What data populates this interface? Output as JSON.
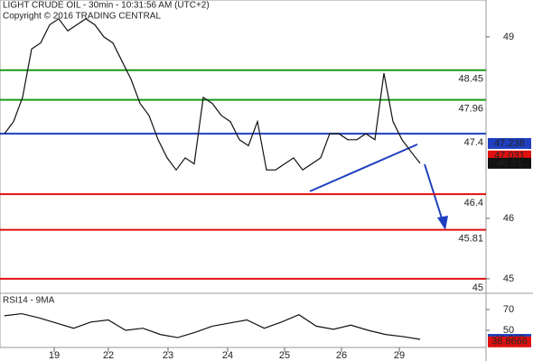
{
  "chart_data": [
    {
      "type": "line",
      "title": "LIGHT CRUDE OIL - 30min - 10:31:56 AM (UTC+2)",
      "subtitle": "Copyright © 2016 TRADING CENTRAL",
      "x": [
        0,
        1,
        2,
        3,
        4,
        5,
        6,
        7,
        8,
        9,
        10,
        11,
        12,
        13,
        14,
        15,
        16,
        17,
        18,
        19,
        20,
        21,
        22,
        23,
        24,
        25,
        26,
        27,
        28,
        29,
        30,
        31,
        32,
        33,
        34,
        35,
        36,
        37,
        38,
        39,
        40,
        41,
        42,
        43,
        44,
        45,
        46
      ],
      "values": [
        47.4,
        47.6,
        48.0,
        48.8,
        48.9,
        49.2,
        49.3,
        49.1,
        49.2,
        49.3,
        49.2,
        49.0,
        48.9,
        48.6,
        48.3,
        47.9,
        47.7,
        47.3,
        47.0,
        46.8,
        47.0,
        46.9,
        48.0,
        47.9,
        47.7,
        47.6,
        47.3,
        47.2,
        47.6,
        46.8,
        46.8,
        46.9,
        47.0,
        46.8,
        46.9,
        47.0,
        47.4,
        47.4,
        47.3,
        47.3,
        47.4,
        47.3,
        48.4,
        47.6,
        47.3,
        47.1,
        46.91
      ],
      "color": "#111111",
      "xlim": [
        -0.5,
        53.3
      ],
      "ylim": [
        44.76,
        49.61
      ],
      "xticks": [
        {
          "value": 5.5,
          "label": "19"
        },
        {
          "value": 11.5,
          "label": "22"
        },
        {
          "value": 18.1,
          "label": "23"
        },
        {
          "value": 24.7,
          "label": "24"
        },
        {
          "value": 31,
          "label": "25"
        },
        {
          "value": 37.3,
          "label": "26"
        },
        {
          "value": 43.7,
          "label": "29"
        }
      ],
      "yticks": [
        49,
        46,
        45
      ],
      "levels": [
        {
          "value": 48.45,
          "color": "#1a9a1a"
        },
        {
          "value": 47.96,
          "color": "#1a9a1a"
        },
        {
          "value": 47.4,
          "color": "#1f3fbf"
        },
        {
          "value": 46.4,
          "color": "#e01010"
        },
        {
          "value": 45.81,
          "color": "#e01010"
        },
        {
          "value": 45,
          "color": "#e01010"
        }
      ],
      "tags": [
        {
          "value": 47.238,
          "color": "#1f3fbf"
        },
        {
          "value": 47.031,
          "color": "#e01010"
        },
        {
          "value": 46.91,
          "color": "#111111"
        }
      ]
    },
    {
      "type": "line",
      "title": "RSI14 - 9MA",
      "x": [
        0,
        1,
        2,
        3,
        4,
        5,
        6,
        7,
        8,
        9,
        10,
        11,
        12,
        13,
        14,
        15,
        16,
        17,
        18,
        19,
        20,
        21,
        22,
        23,
        24
      ],
      "values": [
        64,
        66,
        62,
        57,
        52,
        58,
        60,
        50,
        52,
        46,
        43,
        48,
        54,
        57,
        60,
        52,
        58,
        65,
        54,
        51,
        55,
        50,
        46,
        44,
        41.3
      ],
      "color": "#111111",
      "xlim": [
        -0.25,
        27.8
      ],
      "ylim": [
        30.9,
        85.6
      ],
      "yticks": [
        70,
        50
      ],
      "tags": [
        {
          "value": 41.267,
          "color": "#1f3fbf"
        },
        {
          "value": 38.8666,
          "color": "#e01010"
        }
      ]
    }
  ]
}
